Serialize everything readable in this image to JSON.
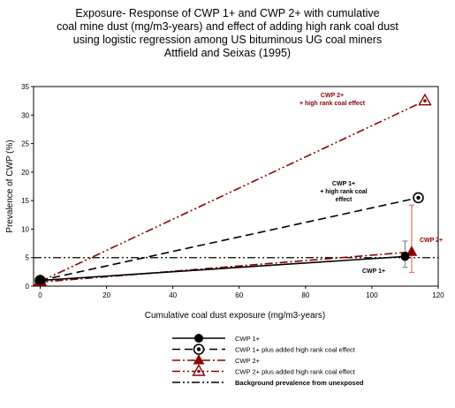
{
  "chart_data": {
    "type": "line",
    "title_lines": [
      "Exposure- Response of CWP 1+ and CWP 2+ with cumulative",
      "coal mine dust (mg/m3-years) and effect of adding high rank coal dust",
      "using logistic regression among US bituminous UG coal miners",
      "Attfield and Seixas (1995)"
    ],
    "xlabel": "Cumulative coal dust exposure (mg/m3-years)",
    "ylabel": "Prevalence of CWP (%)",
    "xlim": [
      -2,
      120
    ],
    "ylim": [
      0,
      35
    ],
    "xticks": [
      0,
      20,
      40,
      60,
      80,
      100,
      120
    ],
    "yticks": [
      0,
      5,
      10,
      15,
      20,
      25,
      30,
      35
    ],
    "grid": false,
    "series": [
      {
        "name": "CWP 1+",
        "color": "#000000",
        "dash": "solid",
        "marker": "filled-circle",
        "points": [
          [
            0,
            1.0
          ],
          [
            110,
            5.2
          ]
        ],
        "error_bars": [
          {
            "x": 110,
            "low": 3.3,
            "high": 7.9
          }
        ]
      },
      {
        "name": "CWP 1+ plus added high rank coal effect",
        "color": "#000000",
        "dash": "dashed",
        "marker": "open-circle-dot",
        "points": [
          [
            0,
            1.0
          ],
          [
            114,
            15.5
          ]
        ]
      },
      {
        "name": "CWP 2+",
        "color": "#8b0000",
        "dash": "dash-dot",
        "marker": "filled-triangle",
        "points": [
          [
            0,
            0.7
          ],
          [
            112,
            6.0
          ]
        ],
        "error_bars": [
          {
            "x": 112,
            "low": 2.4,
            "high": 14.2
          }
        ]
      },
      {
        "name": "CWP 2+ plus added high rank coal effect",
        "color": "#8b0000",
        "dash": "dash-dot-dot",
        "marker": "open-triangle-dot",
        "points": [
          [
            0,
            0.8
          ],
          [
            116,
            32.5
          ]
        ]
      },
      {
        "name": "Background prevalence from unexposed",
        "color": "#000000",
        "dash": "dash-dot-dot",
        "marker": "none",
        "points": [
          [
            -2,
            5
          ],
          [
            120,
            5
          ]
        ]
      }
    ],
    "annotations": [
      {
        "text_lines": [
          "CWP 2+",
          "+ high rank coal effect"
        ],
        "color": "#8b0000"
      },
      {
        "text_lines": [
          "CWP 1+",
          "+ high rank coal",
          "effect"
        ],
        "color": "#000000"
      },
      {
        "text_lines": [
          "CWP 2+"
        ],
        "color": "#8b0000"
      },
      {
        "text_lines": [
          "CWP 1+"
        ],
        "color": "#000000"
      }
    ],
    "legend": {
      "placement": "bottom",
      "bold_last_entry": true
    }
  }
}
